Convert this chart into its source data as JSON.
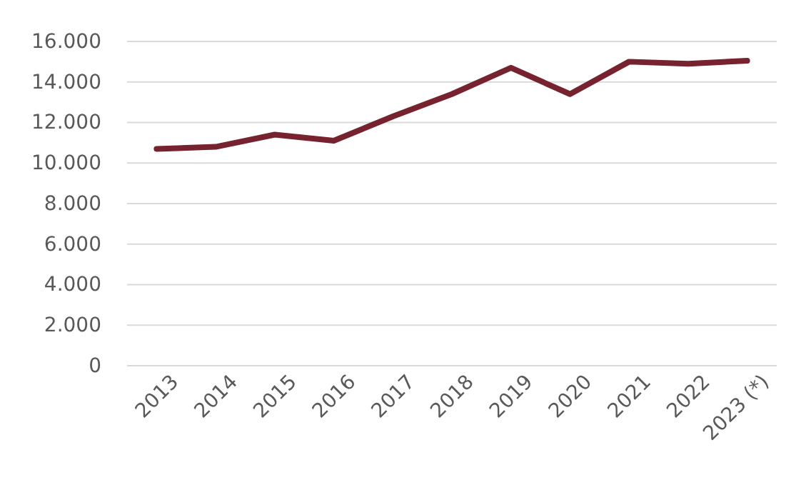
{
  "chart_data": {
    "type": "line",
    "categories": [
      "2013",
      "2014",
      "2015",
      "2016",
      "2017",
      "2018",
      "2019",
      "2020",
      "2021",
      "2022",
      "2023 (*)"
    ],
    "series": [
      {
        "color": "#76232f",
        "values": [
          10700,
          10800,
          11400,
          11100,
          12300,
          13400,
          14700,
          13400,
          15000,
          14900,
          15050
        ]
      }
    ],
    "ylim": [
      0,
      16000
    ],
    "yticks": [
      {
        "value": 0,
        "label": "0"
      },
      {
        "value": 2000,
        "label": "2.000"
      },
      {
        "value": 4000,
        "label": "4.000"
      },
      {
        "value": 6000,
        "label": "6.000"
      },
      {
        "value": 8000,
        "label": "8.000"
      },
      {
        "value": 10000,
        "label": "10.000"
      },
      {
        "value": 12000,
        "label": "12.000"
      },
      {
        "value": 14000,
        "label": "14.000"
      },
      {
        "value": 16000,
        "label": "16.000"
      }
    ],
    "grid": "y",
    "marker": "none",
    "line_style": "solid"
  }
}
